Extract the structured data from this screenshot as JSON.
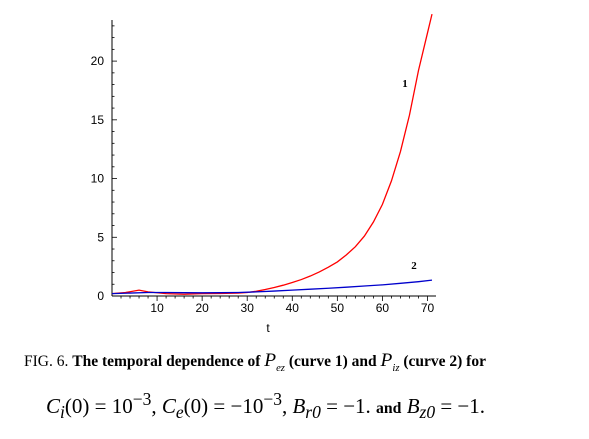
{
  "chart_data": {
    "type": "line",
    "title": "",
    "xlabel": "t",
    "ylabel": "",
    "xlim": [
      0,
      71
    ],
    "ylim": [
      0,
      23.5
    ],
    "x_ticks": [
      "10",
      "20",
      "30",
      "40",
      "50",
      "60",
      "70"
    ],
    "y_ticks": [
      "0",
      "5",
      "10",
      "15",
      "20"
    ],
    "grid": false,
    "series": [
      {
        "name": "1",
        "color": "#ff0000",
        "x": [
          0,
          3,
          6,
          8,
          12,
          16,
          20,
          24,
          28,
          30,
          32,
          34,
          36,
          38,
          40,
          42,
          44,
          46,
          48,
          50,
          52,
          54,
          56,
          58,
          60,
          62,
          64,
          66,
          68,
          70,
          71
        ],
        "y": [
          0.2,
          0.3,
          0.5,
          0.35,
          0.2,
          0.15,
          0.2,
          0.22,
          0.25,
          0.3,
          0.4,
          0.55,
          0.72,
          0.92,
          1.15,
          1.4,
          1.7,
          2.05,
          2.45,
          2.9,
          3.5,
          4.2,
          5.1,
          6.3,
          7.8,
          9.8,
          12.3,
          15.4,
          19.2,
          22.4,
          24.0
        ]
      },
      {
        "name": "2",
        "color": "#0000cc",
        "x": [
          0,
          4,
          8,
          12,
          16,
          20,
          24,
          28,
          32,
          36,
          40,
          44,
          48,
          52,
          56,
          60,
          64,
          68,
          71
        ],
        "y": [
          0.2,
          0.25,
          0.3,
          0.3,
          0.28,
          0.27,
          0.28,
          0.3,
          0.35,
          0.42,
          0.5,
          0.58,
          0.66,
          0.75,
          0.85,
          0.95,
          1.08,
          1.22,
          1.35
        ]
      }
    ],
    "curve_labels": [
      {
        "text": "1",
        "x": 65,
        "y": 17.8
      },
      {
        "text": "2",
        "x": 67,
        "y": 2.3
      }
    ]
  },
  "caption": {
    "fig": "FIG. 6.",
    "intro": "The temporal dependence of",
    "p_ez_sym": "P",
    "p_ez_sub": "ez",
    "curve1": "(curve 1) and",
    "p_iz_sym": "P",
    "p_iz_sub": "iz",
    "curve2": "(curve 2) for",
    "ci_sym": "C",
    "ci_sub": "i",
    "ci_text": "(0) = 10",
    "ci_exp": "−3",
    "comma1": ",",
    "ce_sym": "C",
    "ce_sub": "e",
    "ce_text": "(0) = −10",
    "ce_exp": "−3",
    "comma2": ",",
    "br_sym": "B",
    "br_sub": "r0",
    "br_text": " = −1.",
    "and_word": "and",
    "bz_sym": "B",
    "bz_sub": "z0",
    "bz_text": " = −1."
  }
}
